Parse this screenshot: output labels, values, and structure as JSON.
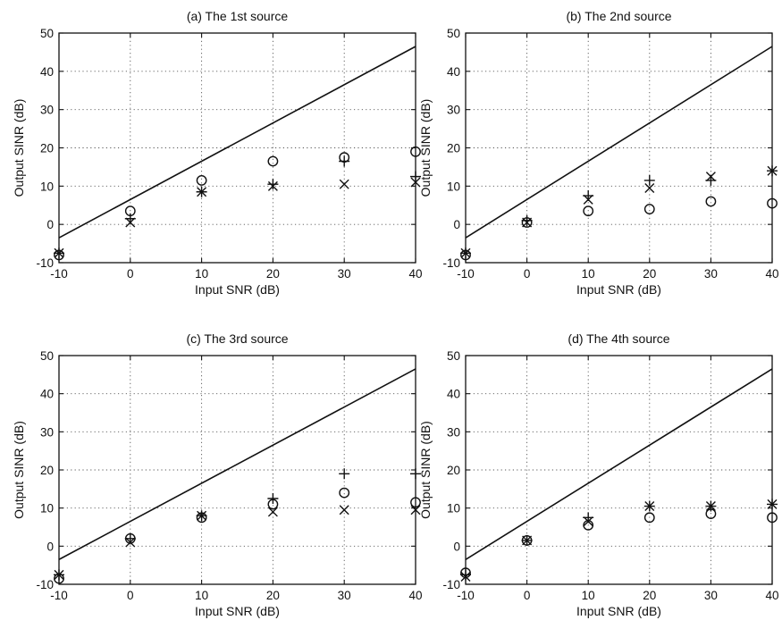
{
  "chart_data": [
    {
      "type": "scatter",
      "title": "(a) The 1st source",
      "xlabel": "Input SNR (dB)",
      "ylabel": "Output SINR (dB)",
      "xlim": [
        -10,
        40
      ],
      "ylim": [
        -10,
        50
      ],
      "xticks": [
        "-10",
        "0",
        "10",
        "20",
        "30",
        "40"
      ],
      "yticks": [
        "-10",
        "0",
        "10",
        "20",
        "30",
        "40",
        "50"
      ],
      "grid": true,
      "line": {
        "x": [
          -10,
          40
        ],
        "y": [
          -3.5,
          46.5
        ]
      },
      "series": [
        {
          "marker": "plus",
          "x": [
            -10,
            0,
            10,
            20,
            30,
            40
          ],
          "y": [
            -7.5,
            1.5,
            8.5,
            10.5,
            16.5,
            12.5
          ]
        },
        {
          "marker": "circle",
          "x": [
            -10,
            0,
            10,
            20,
            30,
            40
          ],
          "y": [
            -8,
            3.5,
            11.5,
            16.5,
            17.5,
            19
          ]
        },
        {
          "marker": "cross",
          "x": [
            -10,
            0,
            10,
            20,
            30,
            40
          ],
          "y": [
            -7.5,
            0.5,
            8.5,
            10,
            10.5,
            11
          ]
        }
      ]
    },
    {
      "type": "scatter",
      "title": "(b) The 2nd source",
      "xlabel": "Input SNR (dB)",
      "ylabel": "Output SINR (dB)",
      "xlim": [
        -10,
        40
      ],
      "ylim": [
        -10,
        50
      ],
      "xticks": [
        "-10",
        "0",
        "10",
        "20",
        "30",
        "40"
      ],
      "yticks": [
        "-10",
        "0",
        "10",
        "20",
        "30",
        "40",
        "50"
      ],
      "grid": true,
      "line": {
        "x": [
          -10,
          40
        ],
        "y": [
          -3.5,
          46.5
        ]
      },
      "series": [
        {
          "marker": "plus",
          "x": [
            -10,
            0,
            10,
            20,
            30,
            40
          ],
          "y": [
            -7.5,
            1,
            7.5,
            11.5,
            11.5,
            14
          ]
        },
        {
          "marker": "circle",
          "x": [
            -10,
            0,
            10,
            20,
            30,
            40
          ],
          "y": [
            -8,
            0.5,
            3.5,
            4,
            6,
            5.5
          ]
        },
        {
          "marker": "cross",
          "x": [
            -10,
            0,
            10,
            20,
            30,
            40
          ],
          "y": [
            -7.5,
            0.5,
            6.5,
            9.5,
            12.5,
            14
          ]
        }
      ]
    },
    {
      "type": "scatter",
      "title": "(c) The 3rd source",
      "xlabel": "Input SNR (dB)",
      "ylabel": "Output SINR (dB)",
      "xlim": [
        -10,
        40
      ],
      "ylim": [
        -10,
        50
      ],
      "xticks": [
        "-10",
        "0",
        "10",
        "20",
        "30",
        "40"
      ],
      "yticks": [
        "-10",
        "0",
        "10",
        "20",
        "30",
        "40",
        "50"
      ],
      "grid": true,
      "line": {
        "x": [
          -10,
          40
        ],
        "y": [
          -3.5,
          46.5
        ]
      },
      "series": [
        {
          "marker": "plus",
          "x": [
            -10,
            0,
            10,
            20,
            30,
            40
          ],
          "y": [
            -7.5,
            2,
            8,
            12.5,
            19,
            19
          ]
        },
        {
          "marker": "circle",
          "x": [
            -10,
            0,
            10,
            20,
            30,
            40
          ],
          "y": [
            -8.5,
            2,
            7.5,
            11,
            14,
            11.5
          ]
        },
        {
          "marker": "cross",
          "x": [
            -10,
            0,
            10,
            20,
            30,
            40
          ],
          "y": [
            -7.5,
            1,
            8,
            9,
            9.5,
            9.5
          ]
        }
      ]
    },
    {
      "type": "scatter",
      "title": "(d) The 4th source",
      "xlabel": "Input SNR (dB)",
      "ylabel": "Output SINR (dB)",
      "xlim": [
        -10,
        40
      ],
      "ylim": [
        -10,
        50
      ],
      "xticks": [
        "-10",
        "0",
        "10",
        "20",
        "30",
        "40"
      ],
      "yticks": [
        "-10",
        "0",
        "10",
        "20",
        "30",
        "40",
        "50"
      ],
      "grid": true,
      "line": {
        "x": [
          -10,
          40
        ],
        "y": [
          -3.5,
          46.5
        ]
      },
      "series": [
        {
          "marker": "plus",
          "x": [
            -10,
            0,
            10,
            20,
            30,
            40
          ],
          "y": [
            -7.5,
            1.5,
            7.5,
            10.5,
            10.5,
            11
          ]
        },
        {
          "marker": "circle",
          "x": [
            -10,
            0,
            10,
            20,
            30,
            40
          ],
          "y": [
            -7,
            1.5,
            5.5,
            7.5,
            8.5,
            7.5
          ]
        },
        {
          "marker": "cross",
          "x": [
            -10,
            0,
            10,
            20,
            30,
            40
          ],
          "y": [
            -8,
            1.5,
            6.5,
            10.5,
            10.5,
            11
          ]
        }
      ]
    }
  ]
}
